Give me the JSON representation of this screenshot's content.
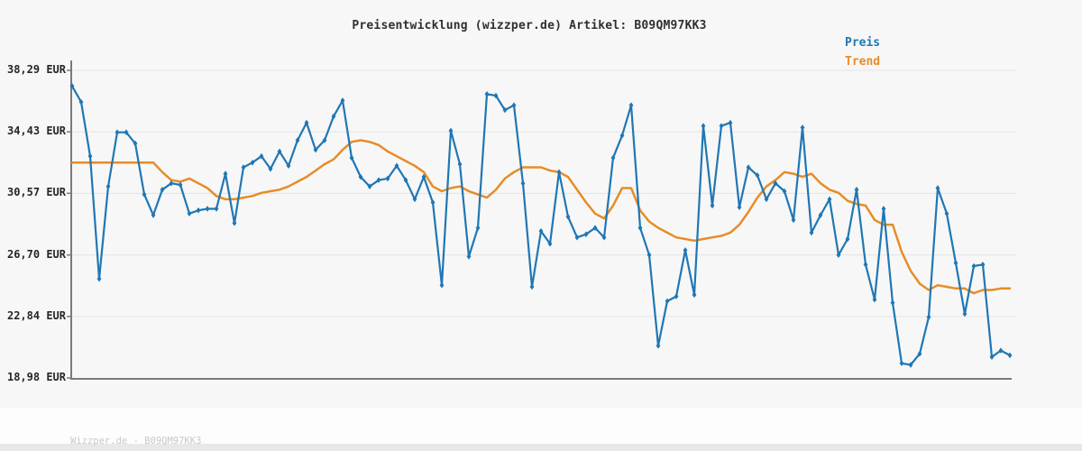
{
  "title": "Preisentwicklung (wizzper.de) Artikel: B09QM97KK3",
  "footer": "Wizzper.de - B09QM97KK3",
  "legend": {
    "position": "top-right",
    "items": [
      {
        "label": "Preis",
        "color": "#1f77b4"
      },
      {
        "label": "Trend",
        "color": "#e78c28"
      }
    ]
  },
  "colors": {
    "price_line": "#1f77b4",
    "trend_line": "#e78c28",
    "chart_background": "#f7f7f7",
    "page_background": "#fdfdfd",
    "grid": "#e4e4e4",
    "axis": "#7a7a7a",
    "title_text": "#2f2f2f",
    "tick_text": "#262626",
    "watermark_text": "#c9c9c9",
    "bottom_strip": "#e8e8e8"
  },
  "chart_data": {
    "type": "line",
    "title": "Preisentwicklung (wizzper.de) Artikel: B09QM97KK3",
    "xlabel": "",
    "ylabel": "EUR",
    "ylim": [
      18.98,
      38.29
    ],
    "grid": true,
    "legend_position": "top-right",
    "y_tick_labels": [
      "38,29 EUR",
      "34,43 EUR",
      "30,57 EUR",
      "26,70 EUR",
      "22,84 EUR",
      "18,98 EUR"
    ],
    "y_tick_values": [
      38.29,
      34.43,
      30.57,
      26.7,
      22.84,
      18.98
    ],
    "x": "unlabeled time axis, 105 equally spaced observations",
    "series": [
      {
        "name": "Preis",
        "color": "#1f77b4",
        "marker": "thin-diamond",
        "line_width": 2.2,
        "values": [
          37.3,
          36.3,
          32.9,
          25.2,
          31.0,
          34.4,
          34.4,
          33.7,
          30.5,
          29.2,
          30.8,
          31.2,
          31.1,
          29.3,
          29.5,
          29.6,
          29.6,
          31.8,
          28.7,
          32.2,
          32.5,
          32.9,
          32.1,
          33.2,
          32.3,
          33.9,
          35.0,
          33.3,
          33.9,
          35.4,
          36.4,
          32.8,
          31.6,
          31.0,
          31.4,
          31.5,
          32.3,
          31.4,
          30.2,
          31.6,
          30.0,
          24.8,
          34.5,
          32.4,
          26.6,
          28.4,
          36.8,
          36.7,
          35.8,
          36.1,
          31.2,
          24.7,
          28.2,
          27.4,
          31.9,
          29.1,
          27.8,
          28.0,
          28.4,
          27.8,
          32.8,
          34.2,
          36.1,
          28.4,
          26.7,
          21.0,
          23.8,
          24.1,
          27.0,
          24.2,
          34.8,
          29.8,
          34.8,
          35.0,
          29.7,
          32.2,
          31.7,
          30.2,
          31.2,
          30.7,
          28.9,
          34.7,
          28.1,
          29.2,
          30.2,
          26.7,
          27.7,
          30.8,
          26.1,
          23.9,
          29.6,
          23.7,
          19.9,
          19.8,
          20.5,
          22.8,
          30.9,
          29.3,
          26.2,
          23.0,
          26.0,
          26.1,
          20.3,
          20.7,
          20.4
        ]
      },
      {
        "name": "Trend",
        "color": "#e78c28",
        "marker": "none",
        "line_width": 2.5,
        "values": [
          32.5,
          32.5,
          32.5,
          32.5,
          32.5,
          32.5,
          32.5,
          32.5,
          32.5,
          32.5,
          31.9,
          31.4,
          31.3,
          31.5,
          31.2,
          30.9,
          30.4,
          30.2,
          30.2,
          30.3,
          30.4,
          30.6,
          30.7,
          30.8,
          31.0,
          31.3,
          31.6,
          32.0,
          32.4,
          32.7,
          33.3,
          33.8,
          33.9,
          33.8,
          33.6,
          33.2,
          32.9,
          32.6,
          32.3,
          31.9,
          31.0,
          30.7,
          30.9,
          31.0,
          30.7,
          30.5,
          30.3,
          30.8,
          31.5,
          31.9,
          32.2,
          32.2,
          32.2,
          32.0,
          31.9,
          31.6,
          30.8,
          30.0,
          29.3,
          29.0,
          29.8,
          30.9,
          30.9,
          29.5,
          28.8,
          28.4,
          28.1,
          27.8,
          27.7,
          27.6,
          27.7,
          27.8,
          27.9,
          28.1,
          28.6,
          29.4,
          30.3,
          31.0,
          31.4,
          31.9,
          31.8,
          31.6,
          31.8,
          31.2,
          30.8,
          30.6,
          30.1,
          29.9,
          29.8,
          28.9,
          28.6,
          28.6,
          26.9,
          25.7,
          24.9,
          24.5,
          24.8,
          24.7,
          24.6,
          24.6,
          24.3,
          24.5,
          24.5,
          24.6,
          24.6
        ]
      }
    ]
  }
}
